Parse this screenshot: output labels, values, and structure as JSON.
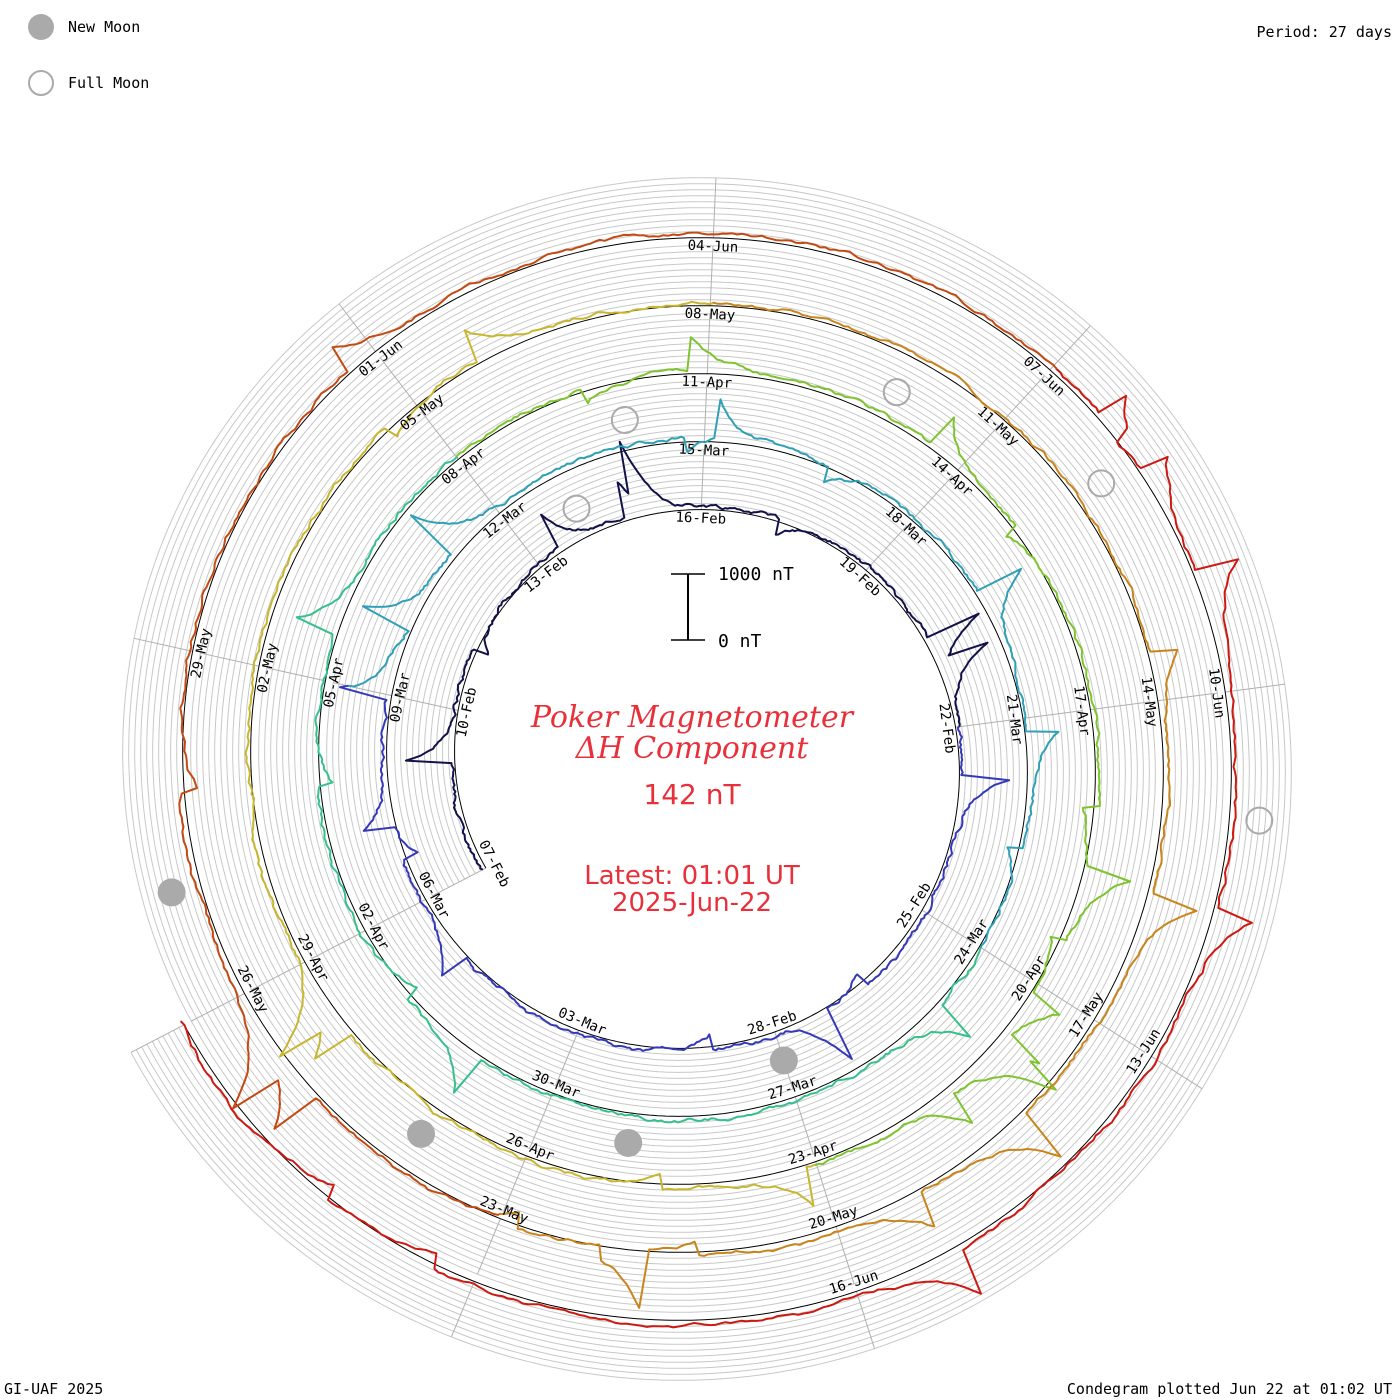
{
  "legend": {
    "new_moon_label": "New Moon",
    "full_moon_label": "Full Moon",
    "new_moon_color": "#aaaaaa",
    "full_moon_color": "#aaaaaa"
  },
  "period": "Period: 27 days",
  "footer": {
    "credit": "GI-UAF 2025",
    "plotted": "Condegram plotted Jun 22 at 01:02 UT"
  },
  "center": {
    "title_line1": "Poker Magnetometer",
    "title_line2": "ΔH Component",
    "value": "142 nT",
    "latest": "Latest: 01:01 UT",
    "date": "2025-Jun-22",
    "scale_top": "1000 nT",
    "scale_bottom": "0 nT",
    "text_color": "#e8303a"
  },
  "chart_data": {
    "type": "line",
    "layout": "spiral condegram",
    "period_days": 27,
    "value_scale_nT": [
      0,
      1000
    ],
    "start_date": "07-Feb",
    "end": "2025-Jun-22 01:01 UT",
    "ticks": [
      "07-Feb",
      "10-Feb",
      "13-Feb",
      "16-Feb",
      "19-Feb",
      "22-Feb",
      "25-Feb",
      "28-Feb",
      "03-Mar",
      "06-Mar",
      "09-Mar",
      "12-Mar",
      "15-Mar",
      "18-Mar",
      "21-Mar",
      "24-Mar",
      "27-Mar",
      "30-Mar",
      "02-Apr",
      "05-Apr",
      "08-Apr",
      "11-Apr",
      "14-Apr",
      "17-Apr",
      "20-Apr",
      "23-Apr",
      "26-Apr",
      "29-Apr",
      "02-May",
      "05-May",
      "08-May",
      "11-May",
      "14-May",
      "17-May",
      "20-May",
      "23-May",
      "26-May",
      "29-May",
      "01-Jun",
      "04-Jun",
      "07-Jun",
      "10-Jun",
      "13-Jun",
      "16-Jun"
    ],
    "series_colors": [
      "#12114a",
      "#3539b8",
      "#2fa0b5",
      "#36c08c",
      "#7ec42e",
      "#c8b62e",
      "#c9841b",
      "#c34a12",
      "#cc1a12"
    ],
    "new_moons": [
      "28-Feb",
      "29-Mar",
      "27-Apr",
      "27-May"
    ],
    "full_moons": [
      "14-Feb",
      "14-Mar",
      "13-Apr",
      "12-May",
      "11-Jun"
    ]
  }
}
